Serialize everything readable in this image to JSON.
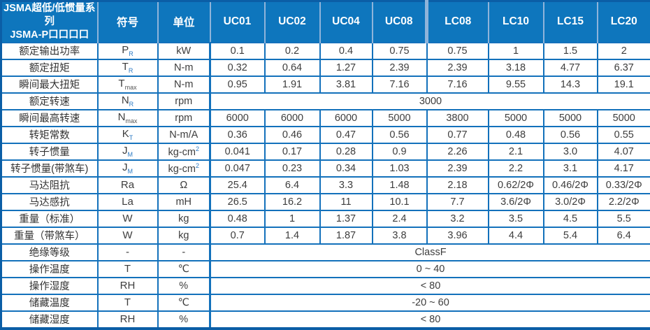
{
  "colors": {
    "header_bg": "#0e76bd",
    "header_sep": "#8fb4da",
    "border": "#1371bb",
    "outer": "#0b5ea6",
    "text_dark": "#3d3d3d",
    "sub_blue": "#2e7bc4"
  },
  "table": {
    "title_line1": "JSMA超低/低惯量系列",
    "title_line2": "JSMA-P口口口口",
    "symbol_header": "符号",
    "unit_header": "单位",
    "models": [
      "UC01",
      "UC02",
      "UC04",
      "UC08",
      "LC08",
      "LC10",
      "LC15",
      "LC20"
    ],
    "rows": [
      {
        "label": "额定输出功率",
        "sym": "P",
        "sub": "R",
        "sub_style": "blue",
        "unit": "kW",
        "values": [
          "0.1",
          "0.2",
          "0.4",
          "0.75",
          "0.75",
          "1",
          "1.5",
          "2"
        ]
      },
      {
        "label": "额定扭矩",
        "sym": "T",
        "sub": "R",
        "sub_style": "blue",
        "unit": "N-m",
        "values": [
          "0.32",
          "0.64",
          "1.27",
          "2.39",
          "2.39",
          "3.18",
          "4.77",
          "6.37"
        ]
      },
      {
        "label": "瞬间最大扭矩",
        "sym": "T",
        "sub": "max",
        "sub_style": "dark",
        "unit": "N-m",
        "values": [
          "0.95",
          "1.91",
          "3.81",
          "7.16",
          "7.16",
          "9.55",
          "14.3",
          "19.1"
        ]
      },
      {
        "label": "额定转速",
        "sym": "N",
        "sub": "R",
        "sub_style": "blue",
        "unit": "rpm",
        "merged": "3000"
      },
      {
        "label": "瞬间最高转速",
        "sym": "N",
        "sub": "max",
        "sub_style": "dark",
        "unit": "rpm",
        "values": [
          "6000",
          "6000",
          "6000",
          "5000",
          "3800",
          "5000",
          "5000",
          "5000"
        ]
      },
      {
        "label": "转矩常数",
        "sym": "K",
        "sub": "T",
        "sub_style": "blue",
        "unit": "N-m/A",
        "values": [
          "0.36",
          "0.46",
          "0.47",
          "0.56",
          "0.77",
          "0.48",
          "0.56",
          "0.55"
        ]
      },
      {
        "label": "转子惯量",
        "sym": "J",
        "sub": "M",
        "sub_style": "blue",
        "unit": "kg-cm",
        "usup": "2",
        "values": [
          "0.041",
          "0.17",
          "0.28",
          "0.9",
          "2.26",
          "2.1",
          "3.0",
          "4.07"
        ]
      },
      {
        "label": "转子惯量(带煞车)",
        "sym": "J",
        "sub": "M",
        "sub_style": "blue",
        "unit": "kg-cm",
        "usup": "2",
        "values": [
          "0.047",
          "0.23",
          "0.34",
          "1.03",
          "2.39",
          "2.2",
          "3.1",
          "4.17"
        ]
      },
      {
        "label": "马达阻抗",
        "sym": "Ra",
        "unit": "Ω",
        "values": [
          "25.4",
          "6.4",
          "3.3",
          "1.48",
          "2.18",
          "0.62/2Φ",
          "0.46/2Φ",
          "0.33/2Φ"
        ]
      },
      {
        "label": "马达感抗",
        "sym": "La",
        "unit": "mH",
        "values": [
          "26.5",
          "16.2",
          "11",
          "10.1",
          "7.7",
          "3.6/2Φ",
          "3.0/2Φ",
          "2.2/2Φ"
        ]
      },
      {
        "label": "重量（标准）",
        "sym": "W",
        "unit": "kg",
        "values": [
          "0.48",
          "1",
          "1.37",
          "2.4",
          "3.2",
          "3.5",
          "4.5",
          "5.5"
        ]
      },
      {
        "label": "重量（带煞车）",
        "sym": "W",
        "unit": "kg",
        "values": [
          "0.7",
          "1.4",
          "1.87",
          "3.8",
          "3.96",
          "4.4",
          "5.4",
          "6.4"
        ]
      },
      {
        "label": "绝缘等级",
        "sym": "-",
        "unit": "-",
        "merged": "ClassF"
      },
      {
        "label": "操作温度",
        "sym": "T",
        "unit": "℃",
        "merged": "0 ~ 40"
      },
      {
        "label": "操作湿度",
        "sym": "RH",
        "unit": "%",
        "merged": "< 80"
      },
      {
        "label": "储藏温度",
        "sym": "T",
        "unit": "℃",
        "merged": "-20 ~ 60"
      },
      {
        "label": "储藏湿度",
        "sym": "RH",
        "unit": "%",
        "merged": "< 80"
      }
    ]
  }
}
